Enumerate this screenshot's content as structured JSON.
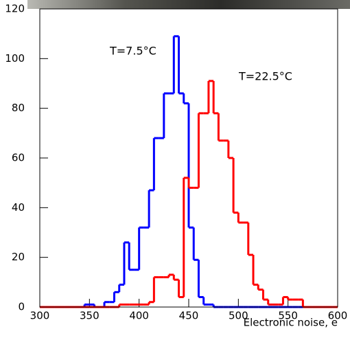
{
  "chart_data": {
    "type": "histogram",
    "xlabel": "Electronic noise, e",
    "bins": [
      300,
      305,
      310,
      315,
      320,
      325,
      330,
      335,
      340,
      345,
      350,
      355,
      360,
      365,
      370,
      375,
      380,
      385,
      390,
      395,
      400,
      405,
      410,
      415,
      420,
      425,
      430,
      435,
      440,
      445,
      450,
      455,
      460,
      465,
      470,
      475,
      480,
      485,
      490,
      495,
      500,
      505,
      510,
      515,
      520,
      525,
      530,
      535,
      540,
      545,
      550,
      555,
      560,
      565,
      570,
      575,
      580,
      585,
      590,
      595,
      600
    ],
    "series": [
      {
        "name": "T=7.5°C",
        "color": "#0000ff",
        "values": [
          0,
          0,
          0,
          0,
          0,
          0,
          0,
          0,
          0,
          1,
          1,
          0,
          0,
          2,
          2,
          6,
          9,
          26,
          15,
          15,
          32,
          32,
          47,
          68,
          68,
          86,
          86,
          109,
          86,
          82,
          32,
          19,
          4,
          1,
          1,
          0,
          0,
          0,
          0,
          0,
          0,
          0,
          0,
          0,
          0,
          0,
          0,
          0,
          0,
          0,
          0,
          0,
          0,
          0,
          0,
          0,
          0,
          0,
          0,
          0
        ]
      },
      {
        "name": "T=22.5°C",
        "color": "#ff0000",
        "values": [
          0,
          0,
          0,
          0,
          0,
          0,
          0,
          0,
          0,
          0,
          0,
          0,
          0,
          0,
          0,
          0,
          1,
          1,
          1,
          1,
          1,
          1,
          2,
          12,
          12,
          12,
          13,
          11,
          4,
          52,
          48,
          48,
          78,
          78,
          91,
          78,
          67,
          67,
          60,
          38,
          34,
          34,
          21,
          9,
          7,
          3,
          1,
          1,
          1,
          4,
          3,
          3,
          3,
          0,
          0,
          0,
          0,
          0,
          0,
          0
        ]
      }
    ],
    "xlim": [
      300,
      600
    ],
    "ylim": [
      0,
      120
    ],
    "xticks": [
      300,
      350,
      400,
      450,
      500,
      550,
      600
    ],
    "yticks": [
      0,
      20,
      40,
      60,
      80,
      100,
      120
    ]
  }
}
